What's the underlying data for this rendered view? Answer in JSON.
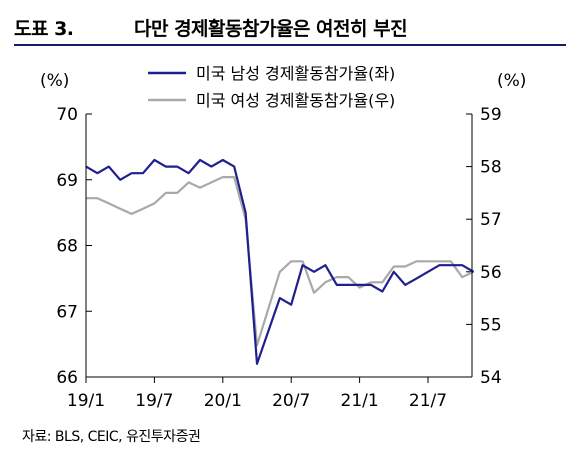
{
  "header": {
    "figure_label": "도표 3.",
    "title": "다만 경제활동참가율은 여전히 부진"
  },
  "source": "자료: BLS, CEIC, 유진투자증권",
  "chart_data": {
    "type": "line",
    "left_unit": "(%)",
    "right_unit": "(%)",
    "x_tick_labels": [
      "19/1",
      "19/7",
      "20/1",
      "20/7",
      "21/1",
      "21/7"
    ],
    "left_axis": {
      "ylim": [
        66,
        70
      ],
      "ticks": [
        "66",
        "67",
        "68",
        "69",
        "70"
      ]
    },
    "right_axis": {
      "ylim": [
        54,
        59
      ],
      "ticks": [
        "54",
        "55",
        "56",
        "57",
        "58",
        "59"
      ]
    },
    "x": [
      "2019-01",
      "2019-02",
      "2019-03",
      "2019-04",
      "2019-05",
      "2019-06",
      "2019-07",
      "2019-08",
      "2019-09",
      "2019-10",
      "2019-11",
      "2019-12",
      "2020-01",
      "2020-02",
      "2020-03",
      "2020-04",
      "2020-05",
      "2020-06",
      "2020-07",
      "2020-08",
      "2020-09",
      "2020-10",
      "2020-11",
      "2020-12",
      "2021-01",
      "2021-02",
      "2021-03",
      "2021-04",
      "2021-05",
      "2021-06",
      "2021-07",
      "2021-08",
      "2021-09",
      "2021-10",
      "2021-11"
    ],
    "series": [
      {
        "name": "미국 남성 경제활동참가율(좌)",
        "axis": "left",
        "color": "#1f1f8f",
        "values": [
          69.2,
          69.1,
          69.2,
          69.0,
          69.1,
          69.1,
          69.3,
          69.2,
          69.2,
          69.1,
          69.3,
          69.2,
          69.3,
          69.2,
          68.5,
          66.2,
          66.7,
          67.2,
          67.1,
          67.7,
          67.6,
          67.7,
          67.4,
          67.4,
          67.4,
          67.4,
          67.3,
          67.6,
          67.4,
          67.5,
          67.6,
          67.7,
          67.7,
          67.7,
          67.6
        ]
      },
      {
        "name": "미국 여성 경제활동참가율(우)",
        "axis": "right",
        "color": "#a9a9a9",
        "values": [
          57.4,
          57.4,
          57.3,
          57.2,
          57.1,
          57.2,
          57.3,
          57.5,
          57.5,
          57.7,
          57.6,
          57.7,
          57.8,
          57.8,
          57.0,
          54.6,
          55.3,
          56.0,
          56.2,
          56.2,
          55.6,
          55.8,
          55.9,
          55.9,
          55.7,
          55.8,
          55.8,
          56.1,
          56.1,
          56.2,
          56.2,
          56.2,
          56.2,
          55.9,
          56.0
        ]
      }
    ]
  }
}
